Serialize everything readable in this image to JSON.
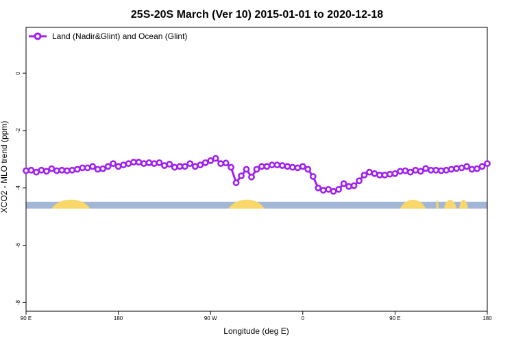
{
  "chart_data": {
    "type": "line",
    "title": "25S-20S March (Ver 10)   2015-01-01 to 2020-12-18",
    "xlabel": "Longitude (deg E)",
    "ylabel": "XCO2 - MLO trend (ppm)",
    "xlim": [
      90,
      450
    ],
    "ylim": [
      -8.3,
      1.6
    ],
    "x_ticks": [
      90,
      162,
      234,
      306,
      378,
      450
    ],
    "x_tick_labels": [
      "90 E",
      "180",
      "90 W",
      "0",
      "90 E",
      "180"
    ],
    "y_ticks": [
      0,
      -2,
      -4,
      -6,
      -8
    ],
    "y_tick_labels": [
      "0",
      "-2",
      "-4",
      "-6",
      "-8"
    ],
    "grid": false,
    "legend_position": "top-left",
    "series": [
      {
        "name": "Land (Nadir&Glint) and Ocean (Glint)",
        "color": "#a020f0",
        "x": [
          90,
          94,
          98,
          102,
          106,
          110,
          114,
          118,
          122,
          126,
          130,
          134,
          138,
          142,
          146,
          150,
          154,
          158,
          162,
          166,
          170,
          174,
          178,
          182,
          186,
          190,
          194,
          198,
          202,
          206,
          210,
          214,
          218,
          222,
          226,
          230,
          234,
          238,
          242,
          246,
          250,
          254,
          258,
          262,
          266,
          270,
          274,
          278,
          282,
          286,
          290,
          294,
          298,
          302,
          306,
          310,
          314,
          318,
          322,
          326,
          330,
          334,
          338,
          342,
          346,
          350,
          354,
          358,
          362,
          366,
          370,
          374,
          378,
          382,
          386,
          390,
          394,
          398,
          402,
          406,
          410,
          414,
          418,
          422,
          426,
          430,
          434,
          438,
          442,
          446,
          450
        ],
        "values": [
          -3.4,
          -3.38,
          -3.45,
          -3.38,
          -3.42,
          -3.33,
          -3.4,
          -3.38,
          -3.4,
          -3.38,
          -3.35,
          -3.3,
          -3.3,
          -3.25,
          -3.35,
          -3.33,
          -3.25,
          -3.15,
          -3.25,
          -3.2,
          -3.15,
          -3.1,
          -3.1,
          -3.15,
          -3.12,
          -3.15,
          -3.12,
          -3.22,
          -3.17,
          -3.28,
          -3.25,
          -3.25,
          -3.15,
          -3.25,
          -3.2,
          -3.12,
          -3.05,
          -2.97,
          -3.15,
          -3.13,
          -3.28,
          -3.82,
          -3.58,
          -3.35,
          -3.62,
          -3.35,
          -3.25,
          -3.25,
          -3.2,
          -3.2,
          -3.22,
          -3.25,
          -3.28,
          -3.3,
          -3.25,
          -3.35,
          -3.6,
          -4.0,
          -4.08,
          -4.05,
          -4.12,
          -4.05,
          -3.85,
          -3.95,
          -3.92,
          -3.75,
          -3.55,
          -3.45,
          -3.5,
          -3.55,
          -3.55,
          -3.52,
          -3.5,
          -3.42,
          -3.4,
          -3.45,
          -3.38,
          -3.42,
          -3.32,
          -3.38,
          -3.38,
          -3.4,
          -3.38,
          -3.35,
          -3.32,
          -3.3,
          -3.25,
          -3.35,
          -3.33,
          -3.25,
          -3.15
        ]
      }
    ],
    "surface_band": {
      "y_center": -4.6,
      "ocean_color": "#a2b7d6",
      "land_color": "#f9d76b",
      "land_ranges": [
        [
          110,
          138
        ],
        [
          250,
          276
        ],
        [
          416,
          426
        ],
        [
          428,
          435
        ],
        [
          382,
          402
        ],
        [
          410,
          412
        ],
        [
          112,
          140
        ],
        [
          248,
          276
        ],
        [
          410,
          412
        ]
      ]
    }
  }
}
